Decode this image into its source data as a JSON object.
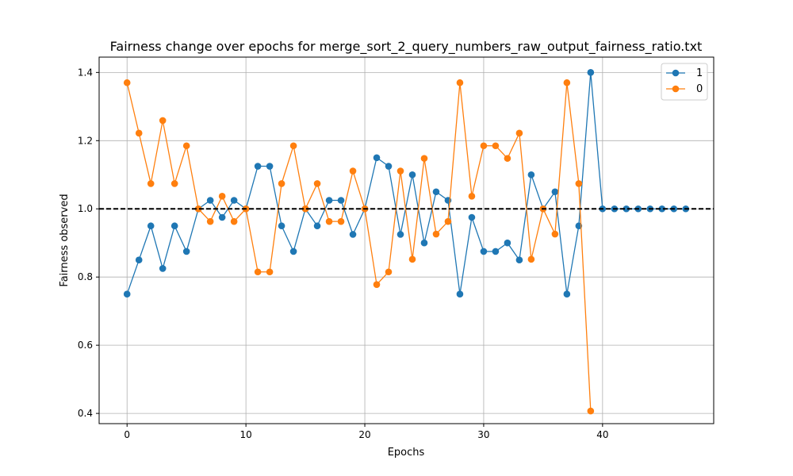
{
  "chart_data": {
    "type": "line",
    "title": "Fairness change over epochs for merge_sort_2_query_numbers_raw_output_fairness_ratio.txt",
    "xlabel": "Epochs",
    "ylabel": "Fairness observed",
    "xlim": [
      -2.35,
      49.35
    ],
    "ylim": [
      0.37,
      1.445
    ],
    "xticks": [
      0,
      10,
      20,
      30,
      40
    ],
    "yticks": [
      0.4,
      0.6,
      0.8,
      1.0,
      1.2,
      1.4
    ],
    "xtick_labels": [
      "0",
      "10",
      "20",
      "30",
      "40"
    ],
    "ytick_labels": [
      "0.4",
      "0.6",
      "0.8",
      "1.0",
      "1.2",
      "1.4"
    ],
    "grid": true,
    "legend_position": "top-right",
    "reference_line": {
      "y": 1.0,
      "style": "dashed",
      "color": "#000000"
    },
    "series": [
      {
        "name": "1",
        "color": "#1f77b4",
        "x": [
          0,
          1,
          2,
          3,
          4,
          5,
          6,
          7,
          8,
          9,
          10,
          11,
          12,
          13,
          14,
          15,
          16,
          17,
          18,
          19,
          20,
          21,
          22,
          23,
          24,
          25,
          26,
          27,
          28,
          29,
          30,
          31,
          32,
          33,
          34,
          35,
          36,
          37,
          38,
          39,
          40,
          41,
          42,
          43,
          44,
          45,
          46,
          47
        ],
        "values": [
          0.75,
          0.85,
          0.95,
          0.825,
          0.95,
          0.875,
          1.0,
          1.025,
          0.975,
          1.025,
          1.0,
          1.125,
          1.125,
          0.95,
          0.875,
          1.0,
          0.95,
          1.025,
          1.025,
          0.925,
          1.0,
          1.15,
          1.125,
          0.925,
          1.1,
          0.9,
          1.05,
          1.025,
          0.75,
          0.975,
          0.875,
          0.875,
          0.9,
          0.85,
          1.1,
          1.0,
          1.05,
          0.75,
          0.95,
          1.4,
          1.0,
          1.0,
          1.0,
          1.0,
          1.0,
          1.0,
          1.0,
          1.0
        ]
      },
      {
        "name": "0",
        "color": "#ff7f0e",
        "x": [
          0,
          1,
          2,
          3,
          4,
          5,
          6,
          7,
          8,
          9,
          10,
          11,
          12,
          13,
          14,
          15,
          16,
          17,
          18,
          19,
          20,
          21,
          22,
          23,
          24,
          25,
          26,
          27,
          28,
          29,
          30,
          31,
          32,
          33,
          34,
          35,
          36,
          37,
          38,
          39
        ],
        "values": [
          1.37,
          1.222,
          1.074,
          1.259,
          1.074,
          1.185,
          1.0,
          0.963,
          1.037,
          0.963,
          1.0,
          0.815,
          0.815,
          1.074,
          1.185,
          1.0,
          1.074,
          0.963,
          0.963,
          1.111,
          1.0,
          0.778,
          0.815,
          1.111,
          0.852,
          1.148,
          0.926,
          0.963,
          1.37,
          1.037,
          1.185,
          1.185,
          1.148,
          1.222,
          0.852,
          1.0,
          0.926,
          1.37,
          1.074,
          0.407
        ]
      }
    ]
  }
}
